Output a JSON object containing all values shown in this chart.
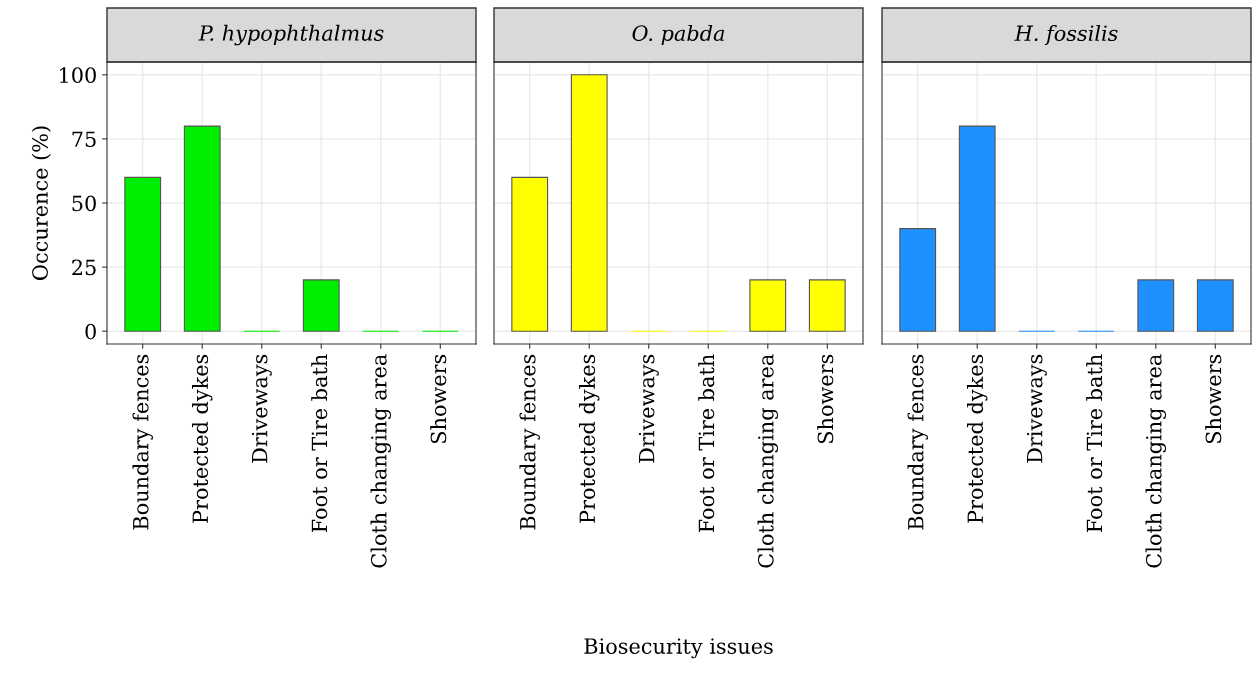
{
  "chart_data": [
    {
      "type": "bar",
      "title": "P. hypophthalmus",
      "ylabel": "Occurence (%)",
      "categories": [
        "Boundary fences",
        "Protected dykes",
        "Driveways",
        "Foot or Tire bath",
        "Cloth changing area",
        "Showers"
      ],
      "values": [
        60,
        80,
        0,
        20,
        0,
        0
      ],
      "color": "#00ee00",
      "ylim": [
        -5,
        105
      ],
      "yticks": [
        0,
        25,
        50,
        75,
        100
      ],
      "grid": true
    },
    {
      "type": "bar",
      "title": "O. pabda",
      "xlabel": "Biosecurity issues",
      "categories": [
        "Boundary fences",
        "Protected dykes",
        "Driveways",
        "Foot or Tire bath",
        "Cloth changing area",
        "Showers"
      ],
      "values": [
        60,
        100,
        0,
        0,
        20,
        20
      ],
      "color": "#ffff00",
      "ylim": [
        -5,
        105
      ],
      "yticks": [
        0,
        25,
        50,
        75,
        100
      ],
      "grid": true,
      "tick_labels": "x"
    },
    {
      "type": "bar",
      "title": "H. fossilis",
      "categories": [
        "Boundary fences",
        "Protected dykes",
        "Driveways",
        "Foot or Tire bath",
        "Cloth changing area",
        "Showers"
      ],
      "values": [
        40,
        80,
        0,
        0,
        20,
        20
      ],
      "color": "#1e90ff",
      "ylim": [
        -5,
        105
      ],
      "yticks": [
        0,
        25,
        50,
        75,
        100
      ],
      "grid": true,
      "tick_labels": "x"
    }
  ]
}
